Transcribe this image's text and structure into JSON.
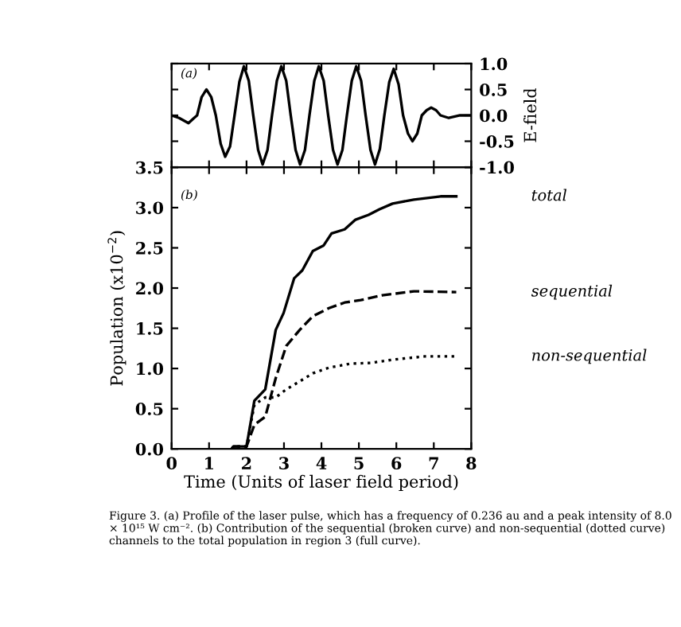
{
  "chart_data": [
    {
      "type": "line",
      "ylabel": "E-field",
      "annotations": [
        "(a)"
      ],
      "tick_labels": "y",
      "xlim": [
        0,
        8
      ],
      "xticks": [
        {
          "value": 0,
          "label": null
        },
        {
          "value": 1,
          "label": null
        },
        {
          "value": 2,
          "label": null
        },
        {
          "value": 3,
          "label": null
        },
        {
          "value": 4,
          "label": null
        },
        {
          "value": 5,
          "label": null
        },
        {
          "value": 6,
          "label": null
        },
        {
          "value": 7,
          "label": null
        },
        {
          "value": 8,
          "label": null
        }
      ],
      "ylim": [
        -1,
        1
      ],
      "yticks": [
        {
          "value": -1,
          "label": "-1.0"
        },
        {
          "value": -0.5,
          "label": "-0.5"
        },
        {
          "value": 0,
          "label": "0.0"
        },
        {
          "value": 0.5,
          "label": "0.5"
        },
        {
          "value": 1,
          "label": "1.0"
        }
      ],
      "grid": false,
      "legend": false,
      "series": [
        {
          "color": "#000000",
          "line_style": "solid",
          "x": [
            0,
            0.2,
            0.45,
            0.6,
            0.68,
            0.8,
            0.93,
            1.06,
            1.18,
            1.31,
            1.43,
            1.56,
            1.68,
            1.81,
            1.93,
            2.06,
            2.18,
            2.31,
            2.43,
            2.56,
            2.68,
            2.81,
            2.93,
            3.06,
            3.18,
            3.31,
            3.43,
            3.56,
            3.68,
            3.81,
            3.93,
            4.06,
            4.18,
            4.31,
            4.43,
            4.56,
            4.68,
            4.81,
            4.93,
            5.06,
            5.18,
            5.31,
            5.43,
            5.56,
            5.68,
            5.81,
            5.93,
            6.06,
            6.18,
            6.31,
            6.43,
            6.56,
            6.68,
            6.81,
            6.93,
            7.06,
            7.18,
            7.4,
            7.7,
            8
          ],
          "values": [
            0,
            -0.05,
            -0.15,
            -0.05,
            0,
            0.35,
            0.5,
            0.35,
            0,
            -0.55,
            -0.8,
            -0.6,
            0,
            0.65,
            0.95,
            0.67,
            0,
            -0.67,
            -0.95,
            -0.67,
            0,
            0.67,
            0.95,
            0.67,
            0,
            -0.67,
            -0.95,
            -0.67,
            0,
            0.67,
            0.95,
            0.67,
            0,
            -0.67,
            -0.95,
            -0.67,
            0,
            0.67,
            0.95,
            0.67,
            0,
            -0.67,
            -0.95,
            -0.65,
            0,
            0.64,
            0.9,
            0.6,
            0,
            -0.35,
            -0.5,
            -0.35,
            0,
            0.1,
            0.15,
            0.1,
            0,
            -0.05,
            0,
            0
          ]
        }
      ]
    },
    {
      "type": "line",
      "xlabel": "Time (Units of laser field period)",
      "ylabel": "Population (x10$^{−2}$)",
      "annotations": [
        "(b)",
        "Figure 3. (a) Profile of the laser pulse, which has a frequency of 0.236 au and a peak intensity of 8.0 × 10¹⁵ W cm⁻². (b) Contribution of the sequential (broken curve) and non-sequential (dotted curve) channels to the total population in region 3 (full curve)."
      ],
      "xlim": [
        0,
        8
      ],
      "xticks": [
        0,
        1,
        2,
        3,
        4,
        5,
        6,
        7,
        8
      ],
      "ylim": [
        0,
        3.5
      ],
      "yticks": [
        {
          "value": 0,
          "label": "0.0"
        },
        {
          "value": 0.5,
          "label": "0.5"
        },
        {
          "value": 1,
          "label": "1.0"
        },
        {
          "value": 1.5,
          "label": "1.5"
        },
        {
          "value": 2,
          "label": "2.0"
        },
        {
          "value": 2.5,
          "label": "2.5"
        },
        {
          "value": 3,
          "label": "3.0"
        },
        {
          "value": 3.5,
          "label": "3.5"
        }
      ],
      "grid": false,
      "legend": false,
      "marker": "none",
      "series": [
        {
          "name": "total",
          "color": "#000000",
          "line_style": "solid",
          "x": [
            1.6,
            1.65,
            2.0,
            2.21,
            2.5,
            2.78,
            2.99,
            3.27,
            3.49,
            3.77,
            4.06,
            4.27,
            4.62,
            4.91,
            5.26,
            5.55,
            5.9,
            6.47,
            7.18,
            7.6
          ],
          "values": [
            0,
            0.03,
            0.03,
            0.6,
            0.74,
            1.48,
            1.69,
            2.12,
            2.22,
            2.46,
            2.53,
            2.68,
            2.73,
            2.85,
            2.91,
            2.98,
            3.05,
            3.1,
            3.14,
            3.14
          ]
        },
        {
          "name": "sequential",
          "color": "#000000",
          "line_style": "dashed",
          "x": [
            1.6,
            1.65,
            2.0,
            2.21,
            2.5,
            2.78,
            3.06,
            3.42,
            3.77,
            4.2,
            4.62,
            5.05,
            5.62,
            6.47,
            7.6
          ],
          "values": [
            0,
            0.03,
            0.03,
            0.3,
            0.4,
            0.88,
            1.28,
            1.48,
            1.65,
            1.75,
            1.82,
            1.85,
            1.91,
            1.96,
            1.95
          ]
        },
        {
          "name": "non-sequential",
          "color": "#000000",
          "line_style": "dotted",
          "x": [
            1.6,
            1.65,
            2.0,
            2.21,
            2.5,
            2.78,
            3.06,
            3.42,
            3.77,
            4.2,
            4.77,
            5.33,
            5.9,
            6.75,
            7.6
          ],
          "values": [
            0,
            0.03,
            0.03,
            0.55,
            0.64,
            0.64,
            0.74,
            0.84,
            0.94,
            1.01,
            1.06,
            1.07,
            1.11,
            1.15,
            1.15
          ]
        }
      ]
    }
  ]
}
